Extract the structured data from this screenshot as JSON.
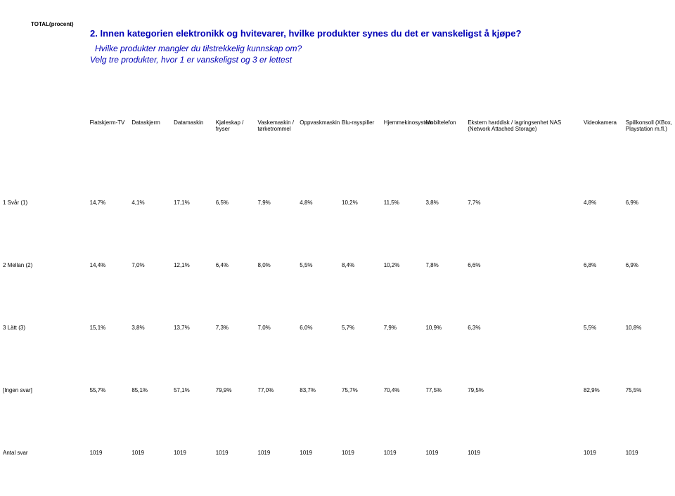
{
  "header": {
    "total_label": "TOTAL(procent)",
    "question": "2. Innen kategorien elektronikk og hvitevarer, hvilke produkter synes du det er vanskeligst å kjøpe?",
    "subtext1": "Hvilke produkter mangler du tilstrekkelig kunnskap om?",
    "subtext2": "Velg tre produkter, hvor 1 er vanskeligst og 3 er lettest"
  },
  "table": {
    "columns": [
      "Flatskjerm-TV",
      "Dataskjerm",
      "Datamaskin",
      "Kjøleskap / fryser",
      "Vaskemaskin / tørketrommel",
      "Oppvaskmaskin",
      "Blu-rayspiller",
      "Hjemmekinosystem",
      "Mobiltelefon",
      "Ekstern harddisk / lagringsenhet NAS (Network Attached Storage)",
      "Videokamera",
      "Spillkonsoll (XBox, Playstation m.fl.)"
    ],
    "rows": [
      {
        "label": "1 Svår (1)",
        "cells": [
          "14,7%",
          "4,1%",
          "17,1%",
          "6,5%",
          "7,9%",
          "4,8%",
          "10,2%",
          "11,5%",
          "3,8%",
          "7,7%",
          "4,8%",
          "6,9%"
        ]
      },
      {
        "label": "2 Mellan (2)",
        "cells": [
          "14,4%",
          "7,0%",
          "12,1%",
          "6,4%",
          "8,0%",
          "5,5%",
          "8,4%",
          "10,2%",
          "7,8%",
          "6,6%",
          "6,8%",
          "6,9%"
        ]
      },
      {
        "label": "3 Lätt (3)",
        "cells": [
          "15,1%",
          "3,8%",
          "13,7%",
          "7,3%",
          "7,0%",
          "6,0%",
          "5,7%",
          "7,9%",
          "10,9%",
          "6,3%",
          "5,5%",
          "10,8%"
        ]
      },
      {
        "label": "[Ingen svar]",
        "cells": [
          "55,7%",
          "85,1%",
          "57,1%",
          "79,9%",
          "77,0%",
          "83,7%",
          "75,7%",
          "70,4%",
          "77,5%",
          "79,5%",
          "82,9%",
          "75,5%"
        ]
      },
      {
        "label": "Antal svar",
        "cells": [
          "1019",
          "1019",
          "1019",
          "1019",
          "1019",
          "1019",
          "1019",
          "1019",
          "1019",
          "1019",
          "1019",
          "1019"
        ]
      }
    ]
  },
  "style": {
    "font_family": "Arial",
    "question_color": "#0000b6",
    "text_color": "#000000",
    "background_color": "#ffffff",
    "total_label_fontsize": 8,
    "question_fontsize": 13,
    "subtext_fontsize": 12,
    "table_fontsize": 8,
    "row_vertical_gap": 80
  }
}
